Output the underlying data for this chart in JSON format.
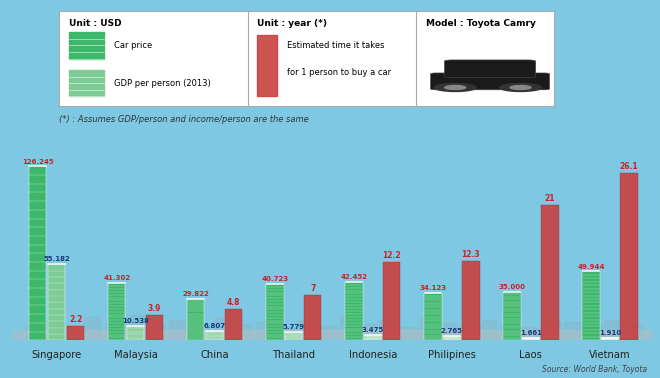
{
  "countries": [
    "Singapore",
    "Malaysia",
    "China",
    "Thailand",
    "Indonesia",
    "Philipines",
    "Laos",
    "Vietnam"
  ],
  "car_price": [
    126245,
    41302,
    29822,
    40723,
    42452,
    34123,
    35000,
    49944
  ],
  "gdp_per_person": [
    55182,
    10538,
    6807,
    5779,
    3475,
    2765,
    1661,
    1910
  ],
  "years_to_buy": [
    2.2,
    3.9,
    4.8,
    7.0,
    12.2,
    12.3,
    21.0,
    26.1
  ],
  "car_price_labels": [
    "126.245",
    "41.302",
    "29.822",
    "40.723",
    "42.452",
    "34.123",
    "35.000",
    "49.944"
  ],
  "gdp_labels": [
    "55.182",
    "10.538",
    "6.807",
    "5.779",
    "3.475",
    "2.765",
    "1.661",
    "1.910"
  ],
  "years_labels": [
    "2.2",
    "3.9",
    "4.8",
    "7",
    "12.2",
    "12.3",
    "21",
    "26.1"
  ],
  "green_dark": "#3db86b",
  "green_light": "#7dcc96",
  "red_bar": "#c94040",
  "bg_sky": "#7ec8e3",
  "city_color": "#8ab5c8",
  "ground_color": "#a8bfc8",
  "title_note": "(*) : Assumes GDP/person and income/person are the same",
  "source": "Source: World Bank, Toyota",
  "max_price": 140000,
  "max_years": 30
}
